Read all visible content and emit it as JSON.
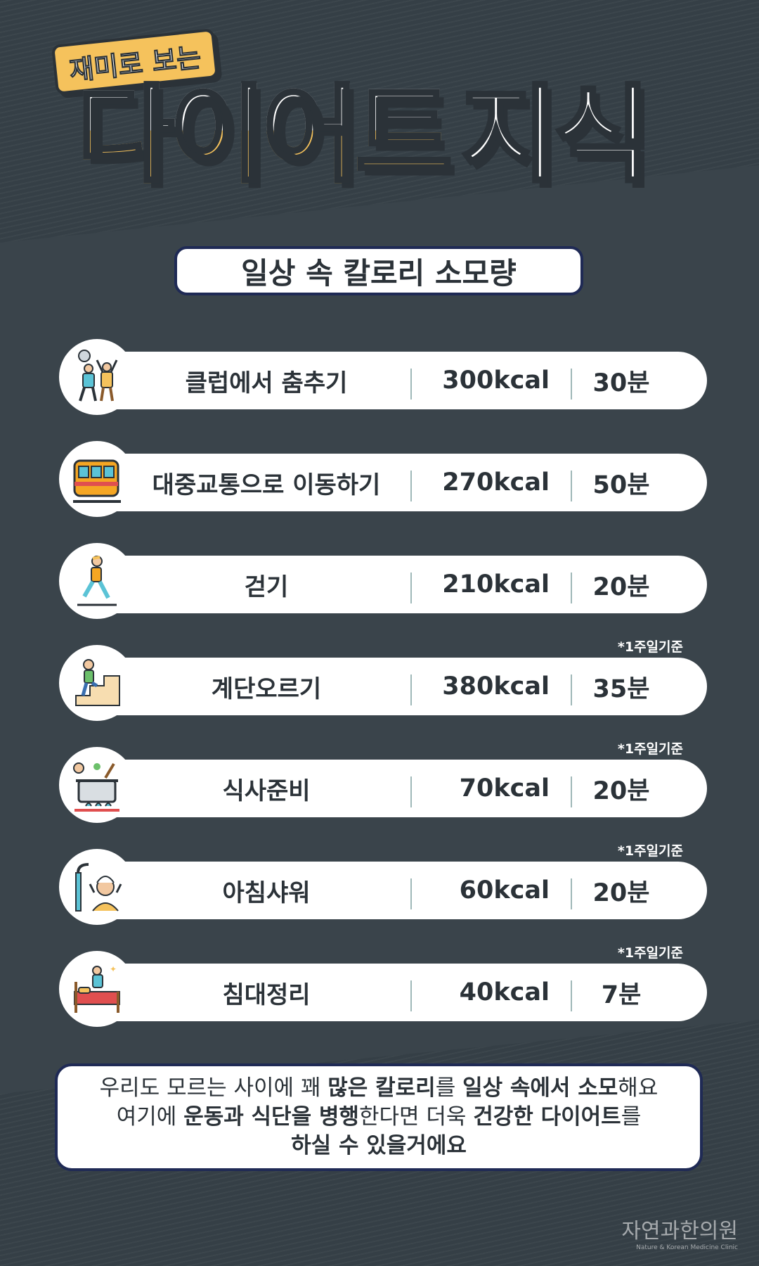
{
  "header": {
    "tag": "재미로 보는",
    "title_word1": "다이어트",
    "title_word2": "지식"
  },
  "subtitle": "일상 속 칼로리 소모량",
  "rows": [
    {
      "activity": "클럽에서 춤추기",
      "kcal": "300kcal",
      "time": "30분",
      "note": "",
      "icon": "dancing-icon"
    },
    {
      "activity": "대중교통으로 이동하기",
      "kcal": "270kcal",
      "time": "50분",
      "note": "",
      "icon": "train-icon"
    },
    {
      "activity": "걷기",
      "kcal": "210kcal",
      "time": "20분",
      "note": "",
      "icon": "walking-icon"
    },
    {
      "activity": "계단오르기",
      "kcal": "380kcal",
      "time": "35분",
      "note": "*1주일기준",
      "icon": "stairs-icon"
    },
    {
      "activity": "식사준비",
      "kcal": "70kcal",
      "time": "20분",
      "note": "*1주일기준",
      "icon": "cooking-icon"
    },
    {
      "activity": "아침샤워",
      "kcal": "60kcal",
      "time": "20분",
      "note": "*1주일기준",
      "icon": "shower-icon"
    },
    {
      "activity": "침대정리",
      "kcal": "40kcal",
      "time": "7분",
      "note": "*1주일기준",
      "icon": "bed-icon"
    }
  ],
  "footer": {
    "line1_a": "우리도 모르는 사이에 꽤 ",
    "line1_b": "많은 칼로리",
    "line1_c": "를 ",
    "line1_d": "일상 속에서 소모",
    "line1_e": "해요",
    "line2_a": "여기에 ",
    "line2_b": "운동과 식단을 병행",
    "line2_c": "한다면 더욱 ",
    "line2_d": "건강한 다이어트",
    "line2_e": "를",
    "line3": "하실 수 있을거에요"
  },
  "brand": {
    "name": "자연과한의원",
    "english": "Nature & Korean Medicine Clinic"
  },
  "colors": {
    "background": "#353f46",
    "accent_yellow": "#f5c25c",
    "navy_border": "#1f2a55",
    "text_dark": "#2b3238"
  }
}
